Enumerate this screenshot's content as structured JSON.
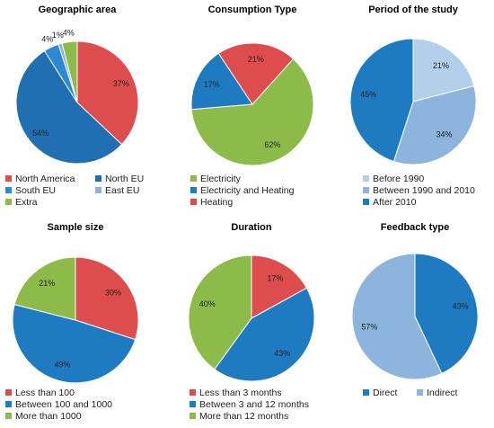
{
  "colors": {
    "red": "#dd4d4d",
    "blue": "#1f7bc1",
    "green": "#8cbb4a",
    "light_blue": "#b3d0ea",
    "mid_blue": "#8cb4dc",
    "steel_blue": "#6fa3d6"
  },
  "chart_data": [
    {
      "type": "pie",
      "title": "Geographic area",
      "slices": [
        {
          "label": "North America",
          "value": 37,
          "pct_label": "37%",
          "color": "#dd4d4d"
        },
        {
          "label": "North EU",
          "value": 54,
          "pct_label": "54%",
          "color": "#1f6fb2"
        },
        {
          "label": "South EU",
          "value": 4,
          "pct_label": "4%",
          "color": "#2b8ad3"
        },
        {
          "label": "East EU",
          "value": 1,
          "pct_label": "1%",
          "color": "#8cb4dc"
        },
        {
          "label": "Extra",
          "value": 4,
          "pct_label": "4%",
          "color": "#8cbb4a"
        }
      ],
      "legend": [
        "North America",
        "North EU",
        "South EU",
        "East EU",
        "Extra"
      ],
      "legend_layout": "two-column",
      "legend_position": "bottom"
    },
    {
      "type": "pie",
      "title": "Consumption Type",
      "slices": [
        {
          "label": "Electricity",
          "value": 62,
          "pct_label": "62%",
          "color": "#8cbb4a"
        },
        {
          "label": "Electricity and Heating",
          "value": 17,
          "pct_label": "17%",
          "color": "#1f7bc1"
        },
        {
          "label": "Heating",
          "value": 21,
          "pct_label": "21%",
          "color": "#dd4d4d"
        }
      ],
      "legend": [
        "Electricity",
        "Electricity and Heating",
        "Heating"
      ],
      "legend_layout": "one-column",
      "legend_position": "bottom"
    },
    {
      "type": "pie",
      "title": "Period of the study",
      "slices": [
        {
          "label": "Before 1990",
          "value": 21,
          "pct_label": "21%",
          "color": "#b3d0ea"
        },
        {
          "label": "Between 1990 and 2010",
          "value": 34,
          "pct_label": "34%",
          "color": "#8cb4dc"
        },
        {
          "label": "After 2010",
          "value": 45,
          "pct_label": "45%",
          "color": "#1f7bc1"
        }
      ],
      "legend": [
        "Before 1990",
        "Between 1990 and 2010",
        "After 2010"
      ],
      "legend_layout": "one-column",
      "legend_position": "bottom"
    },
    {
      "type": "pie",
      "title": "Sample size",
      "slices": [
        {
          "label": "Less than 100",
          "value": 30,
          "pct_label": "30%",
          "color": "#dd4d4d"
        },
        {
          "label": "Between 100 and 1000",
          "value": 49,
          "pct_label": "49%",
          "color": "#1f7bc1"
        },
        {
          "label": "More than 1000",
          "value": 21,
          "pct_label": "21%",
          "color": "#8cbb4a"
        }
      ],
      "legend": [
        "Less than 100",
        "Between 100 and 1000",
        "More than 1000"
      ],
      "legend_layout": "one-column",
      "legend_position": "bottom"
    },
    {
      "type": "pie",
      "title": "Duration",
      "slices": [
        {
          "label": "Less than 3 months",
          "value": 17,
          "pct_label": "17%",
          "color": "#dd4d4d"
        },
        {
          "label": "Between 3 and 12 months",
          "value": 43,
          "pct_label": "43%",
          "color": "#1f7bc1"
        },
        {
          "label": "More than 12 months",
          "value": 40,
          "pct_label": "40%",
          "color": "#8cbb4a"
        }
      ],
      "legend": [
        "Less than 3 months",
        "Between 3 and 12 months",
        "More than 12 months"
      ],
      "legend_layout": "one-column",
      "legend_position": "bottom"
    },
    {
      "type": "pie",
      "title": "Feedback type",
      "slices": [
        {
          "label": "Direct",
          "value": 43,
          "pct_label": "43%",
          "color": "#1f7bc1"
        },
        {
          "label": "Indirect",
          "value": 57,
          "pct_label": "57%",
          "color": "#8cb4dc"
        }
      ],
      "legend": [
        "Direct",
        "Indirect"
      ],
      "legend_layout": "two-column",
      "legend_position": "bottom"
    }
  ]
}
